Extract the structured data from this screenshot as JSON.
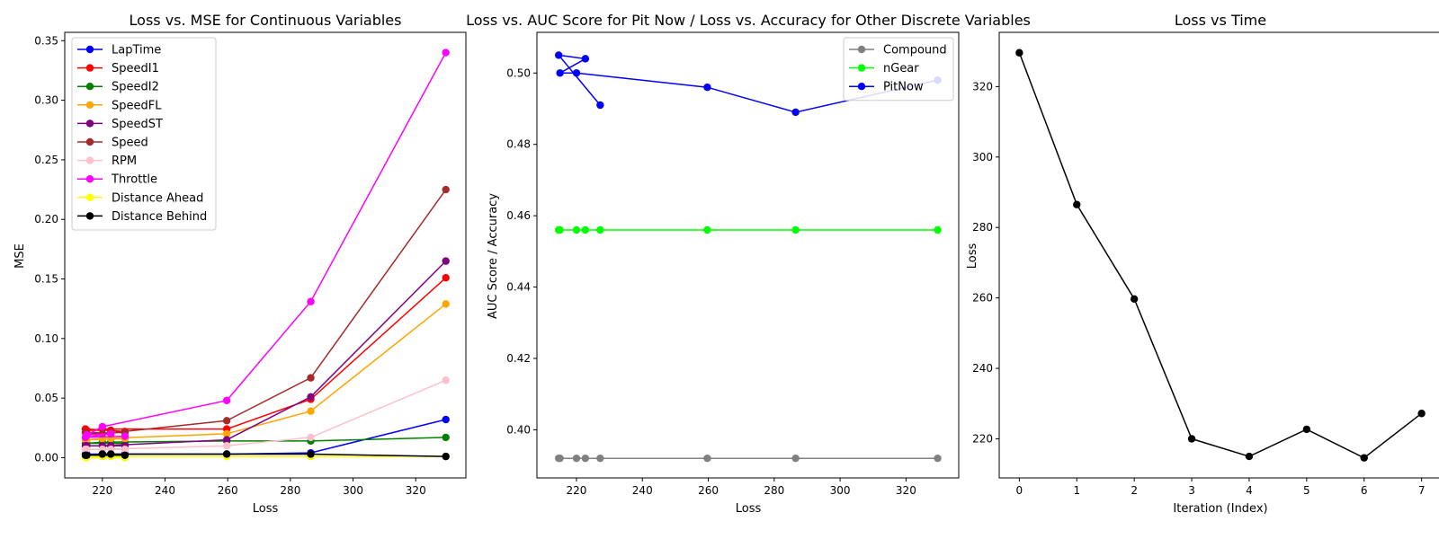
{
  "chart_data": [
    {
      "type": "line",
      "title": "Loss vs. MSE for Continuous Variables",
      "xlabel": "Loss",
      "ylabel": "MSE",
      "xlim": [
        208,
        336
      ],
      "ylim": [
        -0.017,
        0.357
      ],
      "xticks": [
        220,
        240,
        260,
        280,
        300,
        320
      ],
      "yticks": [
        0.0,
        0.05,
        0.1,
        0.15,
        0.2,
        0.25,
        0.3,
        0.35
      ],
      "ytick_format": 2,
      "legend": "upper-left",
      "x": [
        329.6,
        286.5,
        259.7,
        220.0,
        215.0,
        222.7,
        214.6,
        227.2
      ],
      "series": [
        {
          "name": "LapTime",
          "color": "#0000ff",
          "values": [
            0.032,
            0.004,
            0.003,
            0.003,
            0.003,
            0.003,
            0.003,
            0.003
          ]
        },
        {
          "name": "SpeedI1",
          "color": "#ff0000",
          "values": [
            0.151,
            0.049,
            0.024,
            0.024,
            0.023,
            0.023,
            0.024,
            0.022
          ]
        },
        {
          "name": "SpeedI2",
          "color": "#008000",
          "values": [
            0.017,
            0.014,
            0.014,
            0.013,
            0.012,
            0.013,
            0.012,
            0.012
          ]
        },
        {
          "name": "SpeedFL",
          "color": "#ffa500",
          "values": [
            0.129,
            0.039,
            0.02,
            0.016,
            0.015,
            0.016,
            0.015,
            0.016
          ]
        },
        {
          "name": "SpeedST",
          "color": "#800080",
          "values": [
            0.165,
            0.051,
            0.015,
            0.01,
            0.01,
            0.01,
            0.01,
            0.01
          ]
        },
        {
          "name": "Speed",
          "color": "#a52a2a",
          "values": [
            0.225,
            0.067,
            0.031,
            0.02,
            0.02,
            0.021,
            0.021,
            0.021
          ]
        },
        {
          "name": "RPM",
          "color": "#ffc0cb",
          "values": [
            0.065,
            0.017,
            0.01,
            0.007,
            0.007,
            0.007,
            0.007,
            0.007
          ]
        },
        {
          "name": "Throttle",
          "color": "#ff00ff",
          "values": [
            0.34,
            0.131,
            0.048,
            0.026,
            0.019,
            0.02,
            0.017,
            0.018
          ]
        },
        {
          "name": "Distance Ahead",
          "color": "#ffff00",
          "values": [
            0.001,
            0.001,
            0.001,
            0.001,
            0.0,
            0.001,
            0.0,
            0.0
          ]
        },
        {
          "name": "Distance Behind",
          "color": "#000000",
          "values": [
            0.001,
            0.003,
            0.003,
            0.003,
            0.002,
            0.003,
            0.002,
            0.002
          ]
        }
      ]
    },
    {
      "type": "line",
      "title": "Loss vs. AUC Score for Pit Now / Loss vs. Accuracy for Other Discrete Variables",
      "xlabel": "Loss",
      "ylabel": "AUC Score / Accuracy",
      "xlim": [
        208,
        336
      ],
      "ylim": [
        0.3865,
        0.5114
      ],
      "xticks": [
        220,
        240,
        260,
        280,
        300,
        320
      ],
      "yticks": [
        0.4,
        0.42,
        0.44,
        0.46,
        0.48,
        0.5
      ],
      "ytick_format": 2,
      "legend": "upper-right",
      "x": [
        329.6,
        286.5,
        259.7,
        220.0,
        215.0,
        222.7,
        214.6,
        227.2
      ],
      "series": [
        {
          "name": "Compound",
          "color": "#808080",
          "values": [
            0.392,
            0.392,
            0.392,
            0.392,
            0.392,
            0.392,
            0.392,
            0.392
          ]
        },
        {
          "name": "nGear",
          "color": "#00ff00",
          "values": [
            0.456,
            0.456,
            0.456,
            0.456,
            0.456,
            0.456,
            0.456,
            0.456
          ]
        },
        {
          "name": "PitNow",
          "color": "#0000ff",
          "values": [
            0.498,
            0.489,
            0.496,
            0.5,
            0.5,
            0.504,
            0.505,
            0.491
          ]
        }
      ]
    },
    {
      "type": "line",
      "title": "Loss vs Time",
      "xlabel": "Iteration (Index)",
      "ylabel": "Loss",
      "xlim": [
        -0.35,
        7.35
      ],
      "ylim": [
        208.9,
        335.4
      ],
      "xticks": [
        0,
        1,
        2,
        3,
        4,
        5,
        6,
        7
      ],
      "yticks": [
        220,
        240,
        260,
        280,
        300,
        320
      ],
      "ytick_format": 0,
      "legend": "none",
      "x": [
        0,
        1,
        2,
        3,
        4,
        5,
        6,
        7
      ],
      "series": [
        {
          "color": "#000000",
          "values": [
            329.6,
            286.5,
            259.7,
            220.0,
            215.0,
            222.7,
            214.6,
            227.2
          ]
        }
      ]
    }
  ]
}
